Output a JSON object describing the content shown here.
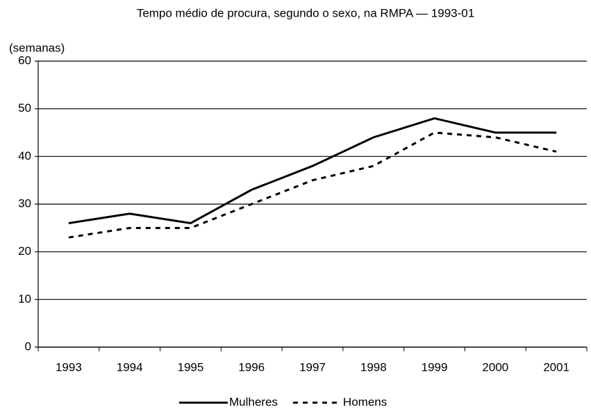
{
  "chart_data": {
    "type": "line",
    "title": "Tempo médio de procura, segundo o sexo, na RMPA — 1993-01",
    "y_label": "(semanas)",
    "categories": [
      "1993",
      "1994",
      "1995",
      "1996",
      "1997",
      "1998",
      "1999",
      "2000",
      "2001"
    ],
    "series": [
      {
        "name": "Mulheres",
        "color": "#000000",
        "dash": "solid",
        "values": [
          26,
          28,
          26,
          33,
          38,
          44,
          48,
          45,
          45
        ]
      },
      {
        "name": "Homens",
        "color": "#000000",
        "dash": "dashed",
        "values": [
          23,
          25,
          25,
          30,
          35,
          38,
          45,
          44,
          41
        ]
      }
    ],
    "ylim": [
      0,
      60
    ],
    "yticks": [
      0,
      10,
      20,
      30,
      40,
      50,
      60
    ],
    "grid": true,
    "legend": "bottom"
  }
}
